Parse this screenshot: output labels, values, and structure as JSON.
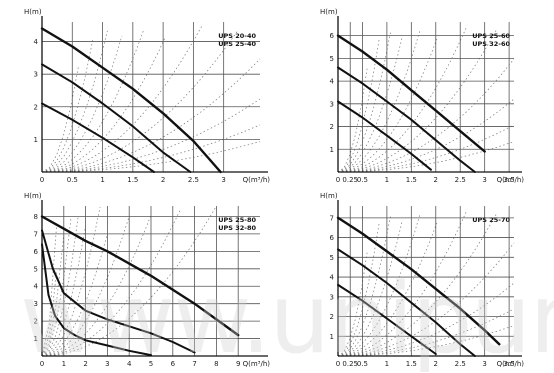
{
  "watermark_text": "www.unipump",
  "chart_data": [
    {
      "type": "line",
      "ylabel": "H(m)",
      "xlabel": "Q(m³/h)",
      "xlim": [
        0,
        3.6
      ],
      "ylim": [
        0,
        4.6
      ],
      "x_ticks": [
        0,
        0.5,
        1,
        1.5,
        2,
        2.5,
        3
      ],
      "x_tick_labels": [
        "0",
        "0.5",
        "1",
        "1.5",
        "2",
        "2.5",
        "3"
      ],
      "y_ticks": [
        1,
        2,
        3,
        4
      ],
      "y_tick_labels": [
        "1",
        "2",
        "3",
        "4"
      ],
      "legend": [
        "UPS 20-40",
        "UPS 25-40"
      ],
      "legend_position": "top-right",
      "grid": true,
      "series": [
        {
          "name": "",
          "x": [
            0,
            0.5,
            1.0,
            1.5,
            2.0,
            2.5,
            2.95
          ],
          "y": [
            4.4,
            3.85,
            3.2,
            2.55,
            1.8,
            0.95,
            0.0
          ]
        },
        {
          "name": "",
          "x": [
            0,
            0.5,
            1.0,
            1.5,
            2.0,
            2.45
          ],
          "y": [
            3.3,
            2.75,
            2.1,
            1.4,
            0.6,
            0.0
          ]
        },
        {
          "name": "",
          "x": [
            0,
            0.5,
            1.0,
            1.5,
            1.85
          ],
          "y": [
            2.1,
            1.6,
            1.05,
            0.45,
            0.0
          ]
        }
      ]
    },
    {
      "type": "line",
      "ylabel": "H(m)",
      "xlabel": "Q(m³/h)",
      "xlim": [
        0,
        3.6
      ],
      "ylim": [
        0,
        6.6
      ],
      "x_ticks": [
        0,
        0.25,
        0.5,
        1,
        1.5,
        2,
        2.5,
        3,
        3.5
      ],
      "x_tick_labels": [
        "0",
        "0.25",
        "0.5",
        "1",
        "1.5",
        "2",
        "2.5",
        "3",
        "3.5"
      ],
      "y_ticks": [
        1,
        2,
        3,
        4,
        5,
        6
      ],
      "y_tick_labels": [
        "1",
        "2",
        "3",
        "4",
        "5",
        "6"
      ],
      "legend": [
        "UPS 25-60",
        "UPS 32-60"
      ],
      "legend_position": "top-right",
      "grid": true,
      "series": [
        {
          "name": "",
          "x": [
            0,
            0.5,
            1.0,
            1.5,
            2.0,
            2.5,
            3.0
          ],
          "y": [
            6.0,
            5.3,
            4.5,
            3.6,
            2.7,
            1.8,
            0.9
          ]
        },
        {
          "name": "",
          "x": [
            0,
            0.5,
            1.0,
            1.5,
            2.0,
            2.5,
            2.8
          ],
          "y": [
            4.6,
            3.9,
            3.1,
            2.3,
            1.4,
            0.5,
            0.0
          ]
        },
        {
          "name": "",
          "x": [
            0,
            0.5,
            1.0,
            1.5,
            1.9
          ],
          "y": [
            3.1,
            2.4,
            1.6,
            0.8,
            0.1
          ]
        }
      ]
    },
    {
      "type": "line",
      "ylabel": "H(m)",
      "xlabel": "Q(m³/h)",
      "xlim": [
        0,
        10
      ],
      "ylim": [
        0,
        8.6
      ],
      "x_ticks": [
        0,
        1,
        2,
        3,
        4,
        5,
        6,
        7,
        8,
        9
      ],
      "x_tick_labels": [
        "0",
        "1",
        "2",
        "3",
        "4",
        "5",
        "6",
        "7",
        "8",
        "9"
      ],
      "y_ticks": [
        1,
        2,
        3,
        4,
        5,
        6,
        7,
        8
      ],
      "y_tick_labels": [
        "1",
        "2",
        "3",
        "4",
        "5",
        "6",
        "7",
        "8"
      ],
      "legend": [
        "UPS 25-80",
        "UPS 32-80"
      ],
      "legend_position": "top-right",
      "grid": true,
      "series": [
        {
          "name": "",
          "x": [
            0,
            1,
            2,
            3,
            4,
            5,
            6,
            7,
            8,
            9
          ],
          "y": [
            8.0,
            7.3,
            6.6,
            6.0,
            5.3,
            4.6,
            3.8,
            3.0,
            2.1,
            1.2
          ]
        },
        {
          "name": "",
          "x": [
            0,
            0.5,
            1,
            2,
            3,
            4,
            5,
            6,
            7
          ],
          "y": [
            7.2,
            5.0,
            3.6,
            2.6,
            2.1,
            1.7,
            1.3,
            0.8,
            0.2
          ]
        },
        {
          "name": "",
          "x": [
            0,
            0.3,
            0.6,
            1,
            1.5,
            2,
            3,
            4,
            5
          ],
          "y": [
            6.4,
            3.5,
            2.3,
            1.6,
            1.2,
            0.9,
            0.6,
            0.3,
            0.05
          ]
        }
      ]
    },
    {
      "type": "line",
      "ylabel": "H(m)",
      "xlabel": "Q(m³/h)",
      "xlim": [
        0,
        3.6
      ],
      "ylim": [
        0,
        7.6
      ],
      "x_ticks": [
        0,
        0.25,
        0.5,
        1,
        1.5,
        2,
        2.5,
        3,
        3.5
      ],
      "x_tick_labels": [
        "0",
        "0.25",
        "0.5",
        "1",
        "1.5",
        "2",
        "2.5",
        "3",
        "3.5"
      ],
      "y_ticks": [
        1,
        2,
        3,
        4,
        5,
        6,
        7
      ],
      "y_tick_labels": [
        "1",
        "2",
        "3",
        "4",
        "5",
        "6",
        "7"
      ],
      "legend": [
        "UPS 25-70"
      ],
      "legend_position": "top-right",
      "grid": true,
      "series": [
        {
          "name": "",
          "x": [
            0,
            0.5,
            1.0,
            1.5,
            2.0,
            2.5,
            3.0,
            3.3
          ],
          "y": [
            7.0,
            6.2,
            5.3,
            4.4,
            3.4,
            2.4,
            1.3,
            0.6
          ]
        },
        {
          "name": "",
          "x": [
            0,
            0.5,
            1.0,
            1.5,
            2.0,
            2.5,
            2.8
          ],
          "y": [
            5.4,
            4.6,
            3.7,
            2.7,
            1.7,
            0.6,
            0.0
          ]
        },
        {
          "name": "",
          "x": [
            0,
            0.5,
            1.0,
            1.5,
            2.0
          ],
          "y": [
            3.6,
            2.8,
            1.9,
            1.0,
            0.1
          ]
        }
      ]
    }
  ]
}
